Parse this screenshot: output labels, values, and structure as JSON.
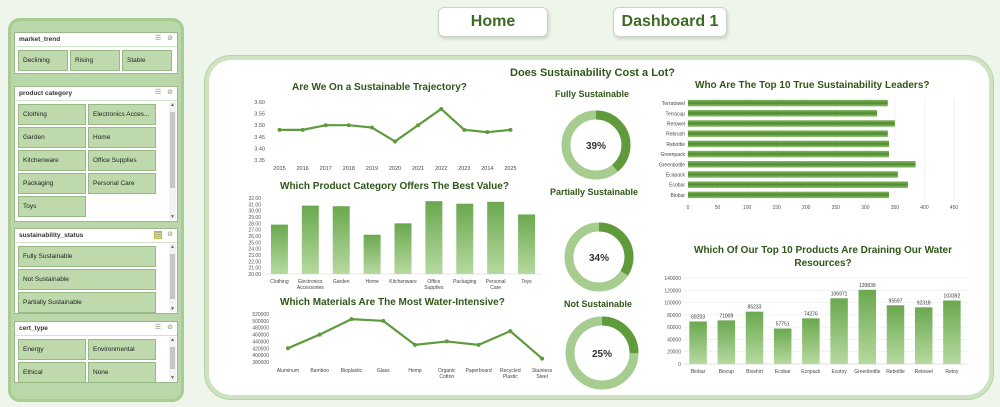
{
  "nav": {
    "home_label": "Home",
    "dashboard_label": "Dashboard 1"
  },
  "slicers": {
    "market_trend": {
      "title": "market_trend",
      "items": [
        "Declining",
        "Rising",
        "Stable"
      ]
    },
    "product_category": {
      "title": "product category",
      "items": [
        "Clothing",
        "Electronics Acces...",
        "Garden",
        "Home",
        "Kitchenware",
        "Office Supplies",
        "Packaging",
        "Personal Care",
        "Toys"
      ]
    },
    "sustainability_status": {
      "title": "sustainability_status",
      "items": [
        "Fully Sustainable",
        "Not Sustainable",
        "Partially Sustainable"
      ]
    },
    "cert_type": {
      "title": "cert_type",
      "items": [
        "Energy",
        "Environmental",
        "Ethical",
        "None"
      ]
    }
  },
  "main": {
    "title": "Does Sustainability Cost a Lot?"
  },
  "donuts": [
    {
      "label": "Fully Sustainable",
      "value": 39,
      "text": "39%"
    },
    {
      "label": "Partially Sustainable",
      "value": 34,
      "text": "34%"
    },
    {
      "label": "Not Sustainable",
      "value": 25,
      "text": "25%"
    }
  ],
  "colors": {
    "accent": "#5f9a3c",
    "light": "#a7cc8f",
    "title": "#2f5718",
    "panel_border": "#cfe3c3"
  },
  "chart_data": [
    {
      "id": "trajectory",
      "type": "line",
      "title": "Are We On a Sustainable Trajectory?",
      "categories": [
        "2015",
        "2016",
        "2017",
        "2018",
        "2019",
        "2020",
        "2021",
        "2022",
        "2023",
        "2014",
        "2025"
      ],
      "values": [
        3.48,
        3.48,
        3.5,
        3.5,
        3.49,
        3.43,
        3.5,
        3.57,
        3.48,
        3.47,
        3.48
      ],
      "ylim": [
        3.35,
        3.6
      ],
      "yticks": [
        "3.60",
        "3.55",
        "3.50",
        "3.45",
        "3.40",
        "3.35"
      ]
    },
    {
      "id": "category_value",
      "type": "bar",
      "title": "Which Product Category Offers The Best Value?",
      "categories": [
        "Clothing",
        "Electronics Accessories",
        "Garden",
        "Home",
        "Kitchenware",
        "Office Supplies",
        "Packaging",
        "Personal Care",
        "Toys"
      ],
      "values": [
        27.8,
        30.8,
        30.7,
        26.2,
        28.0,
        31.5,
        31.1,
        31.4,
        29.4
      ],
      "ylim": [
        20,
        32
      ],
      "yticks": [
        "32.00",
        "31.00",
        "30.00",
        "29.00",
        "28.00",
        "27.00",
        "26.00",
        "25.00",
        "24.00",
        "23.00",
        "22.00",
        "21.00",
        "20.00"
      ]
    },
    {
      "id": "materials_water",
      "type": "line",
      "title": "Which Materials Are The Most Water-Intensive?",
      "categories": [
        "Aluminum",
        "Bamboo",
        "Bioplastic",
        "Glass",
        "Hemp",
        "Organic Cotton",
        "Paperboard",
        "Recycled Plastic",
        "Stainless Steel"
      ],
      "values": [
        420000,
        460000,
        505000,
        500000,
        430000,
        440000,
        430000,
        470000,
        390000
      ],
      "ylim": [
        380000,
        520000
      ],
      "yticks": [
        "520000",
        "500000",
        "480000",
        "460000",
        "440000",
        "420000",
        "400000",
        "380000"
      ]
    },
    {
      "id": "leaders",
      "type": "bar",
      "orientation": "horizontal",
      "title": "Who Are The Top 10 True Sustainability Leaders?",
      "categories": [
        "Terratowel",
        "Terracup",
        "Retowel",
        "Rebrush",
        "Rebottle",
        "Greenpack",
        "Greenbottle",
        "Ecopack",
        "Ecobar",
        "Biobar"
      ],
      "values": [
        338,
        320,
        350,
        338,
        340,
        340,
        385,
        355,
        372,
        340
      ],
      "xlim": [
        0,
        450
      ],
      "xticks": [
        "0",
        "50",
        "100",
        "150",
        "200",
        "250",
        "300",
        "350",
        "400",
        "450"
      ]
    },
    {
      "id": "water_drain",
      "type": "bar",
      "title": "Which Of Our Top 10 Products Are Draining Our Water Resources?",
      "categories": [
        "Biobar",
        "Biocup",
        "Bioshirt",
        "Ecobar",
        "Ecopack",
        "Ecotoy",
        "Greenbottle",
        "Rebottle",
        "Retowel",
        "Retoy"
      ],
      "values": [
        69203,
        71009,
        85233,
        57751,
        74276,
        106971,
        120839,
        95597,
        92318,
        103392
      ],
      "labels": [
        "69203",
        "71009",
        "85233",
        "57751",
        "74276",
        "106971",
        "120839",
        "95597",
        "92318",
        "103392"
      ],
      "ylim": [
        0,
        140000
      ],
      "yticks": [
        "140000",
        "120000",
        "100000",
        "80000",
        "60000",
        "40000",
        "20000",
        "0"
      ]
    }
  ]
}
